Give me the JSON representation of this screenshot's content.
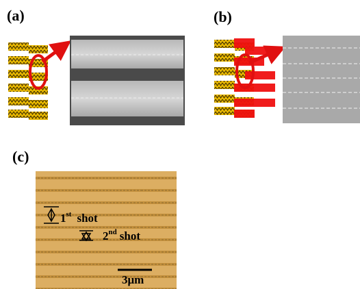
{
  "panels": [
    {
      "label": "(a)"
    },
    {
      "label": "(b)"
    },
    {
      "label": "(c)",
      "annotations": [
        {
          "number": "1",
          "suffix": "st",
          "text": "shot"
        },
        {
          "number": "2",
          "suffix": "nd",
          "text": "shot"
        }
      ],
      "scale_bar": "3μm"
    }
  ]
}
